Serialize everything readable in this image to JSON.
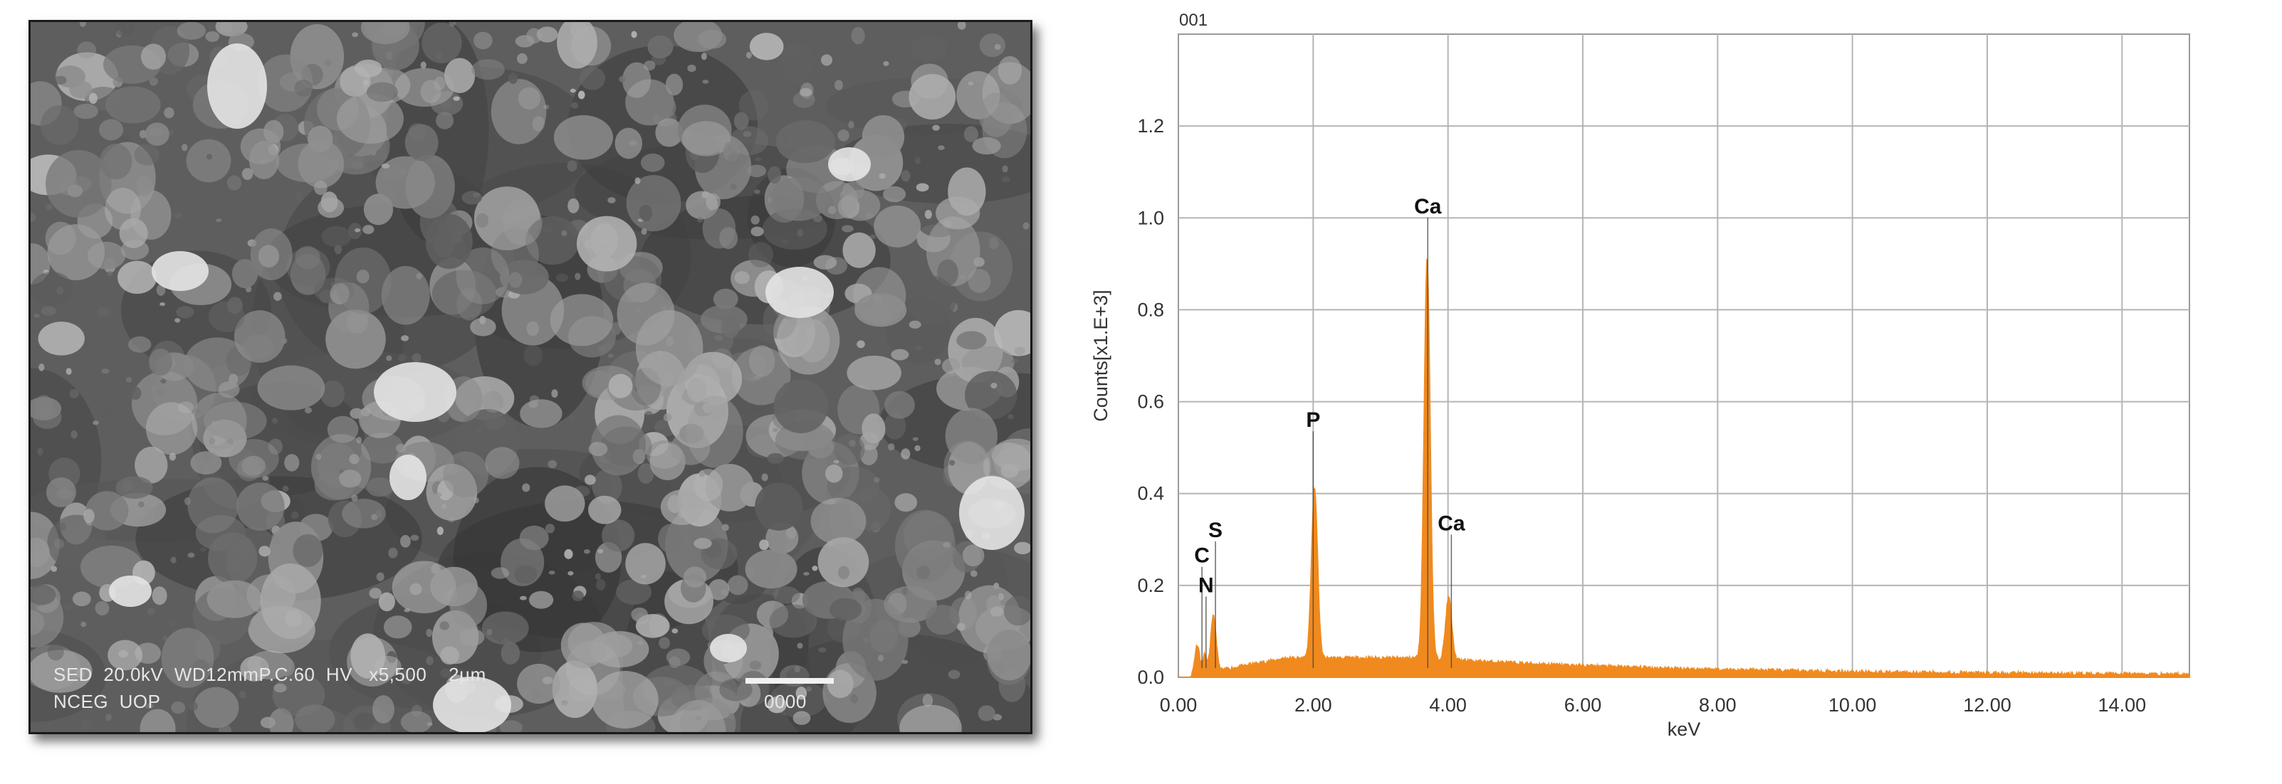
{
  "sem_image": {
    "info_line1": "SED  20.0kV  WD12mmP.C.60  HV   x5,500    2µm",
    "info_line2": "NCEG  UOP",
    "scale_id": "0000"
  },
  "chart_data": {
    "type": "line",
    "title": "001",
    "xlabel": "keV",
    "ylabel": "Counts[x1.E+3]",
    "xlim": [
      0,
      15
    ],
    "ylim": [
      0,
      1.4
    ],
    "x_ticks": [
      "0.00",
      "2.00",
      "4.00",
      "6.00",
      "8.00",
      "10.00",
      "12.00",
      "14.00"
    ],
    "y_ticks": [
      "0.0",
      "0.2",
      "0.4",
      "0.6",
      "0.8",
      "1.0",
      "1.2"
    ],
    "grid": true,
    "series_color": "#F08A1E",
    "peaks": [
      {
        "x": 0.28,
        "y": 0.065
      },
      {
        "x": 0.39,
        "y": 0.04
      },
      {
        "x": 0.52,
        "y": 0.12
      },
      {
        "x": 2.02,
        "y": 0.37
      },
      {
        "x": 3.69,
        "y": 0.87
      },
      {
        "x": 4.01,
        "y": 0.135
      }
    ],
    "annotations": [
      {
        "text": "C",
        "x": 0.35,
        "y": 0.25
      },
      {
        "text": "N",
        "x": 0.41,
        "y": 0.185
      },
      {
        "text": "S",
        "x": 0.55,
        "y": 0.305
      },
      {
        "text": "P",
        "x": 2.0,
        "y": 0.545
      },
      {
        "text": "Ca",
        "x": 3.7,
        "y": 1.01
      },
      {
        "text": "Ca",
        "x": 4.05,
        "y": 0.32
      }
    ]
  }
}
